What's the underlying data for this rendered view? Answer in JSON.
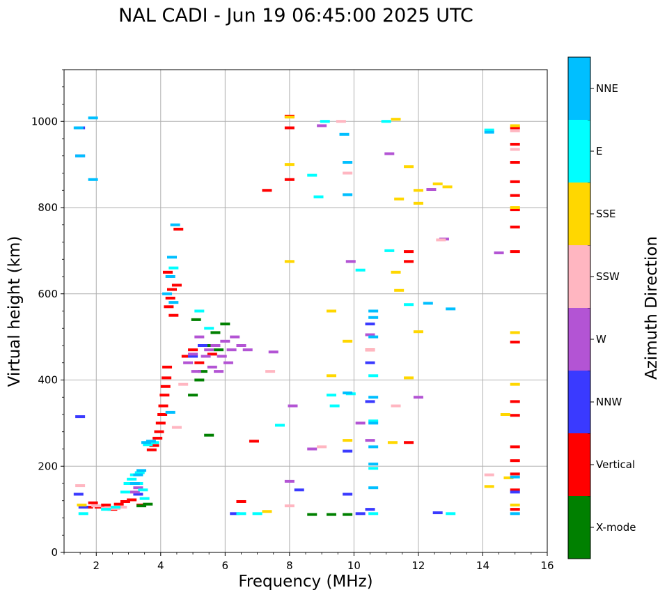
{
  "chart_data": {
    "type": "scatter",
    "title": "NAL CADI - Jun 19 06:45:00 2025 UTC",
    "xlabel": "Frequency (MHz)",
    "ylabel": "Virtual height (km)",
    "xlim": [
      1,
      16
    ],
    "ylim": [
      0,
      1120
    ],
    "xticks": [
      2,
      4,
      6,
      8,
      10,
      12,
      14,
      16
    ],
    "yticks": [
      0,
      200,
      400,
      600,
      800,
      1000
    ],
    "grid": true,
    "colorbar": {
      "label": "Azimuth Direction",
      "categories": [
        {
          "name": "X-mode",
          "color": "#008000"
        },
        {
          "name": "Vertical",
          "color": "#ff0000"
        },
        {
          "name": "NNW",
          "color": "#3a3aff"
        },
        {
          "name": "W",
          "color": "#b354d4"
        },
        {
          "name": "SSW",
          "color": "#ffb6c1"
        },
        {
          "name": "SSE",
          "color": "#ffd700"
        },
        {
          "name": "E",
          "color": "#00ffff"
        },
        {
          "name": "NNE",
          "color": "#00bfff"
        }
      ]
    },
    "series": [
      {
        "name": "Vertical",
        "points": [
          [
            1.75,
            105
          ],
          [
            1.9,
            115
          ],
          [
            2.1,
            105
          ],
          [
            2.3,
            110
          ],
          [
            2.5,
            100
          ],
          [
            2.7,
            112
          ],
          [
            2.9,
            118
          ],
          [
            3.1,
            122
          ],
          [
            3.4,
            110
          ],
          [
            3.72,
            238
          ],
          [
            3.8,
            248
          ],
          [
            3.9,
            265
          ],
          [
            3.95,
            280
          ],
          [
            4.0,
            300
          ],
          [
            4.05,
            320
          ],
          [
            4.08,
            340
          ],
          [
            4.12,
            365
          ],
          [
            4.15,
            385
          ],
          [
            4.18,
            405
          ],
          [
            4.2,
            430
          ],
          [
            4.25,
            570
          ],
          [
            4.22,
            650
          ],
          [
            4.3,
            590
          ],
          [
            4.35,
            610
          ],
          [
            4.4,
            550
          ],
          [
            4.5,
            620
          ],
          [
            4.55,
            750
          ],
          [
            4.8,
            455
          ],
          [
            5.0,
            470
          ],
          [
            5.2,
            440
          ],
          [
            5.6,
            460
          ],
          [
            6.5,
            118
          ],
          [
            6.9,
            258
          ],
          [
            7.3,
            840
          ],
          [
            8.0,
            865
          ],
          [
            8.0,
            985
          ],
          [
            8.0,
            1012
          ],
          [
            10.5,
            470
          ],
          [
            11.7,
            255
          ],
          [
            11.7,
            675
          ],
          [
            11.7,
            698
          ],
          [
            15.0,
            100
          ],
          [
            15.0,
            145
          ],
          [
            15.0,
            182
          ],
          [
            15.0,
            213
          ],
          [
            15.0,
            245
          ],
          [
            15.0,
            318
          ],
          [
            15.0,
            350
          ],
          [
            15.0,
            488
          ],
          [
            15.0,
            698
          ],
          [
            15.0,
            755
          ],
          [
            15.0,
            795
          ],
          [
            15.0,
            828
          ],
          [
            15.0,
            860
          ],
          [
            15.0,
            905
          ],
          [
            15.0,
            947
          ],
          [
            15.0,
            985
          ]
        ]
      },
      {
        "name": "X-mode",
        "points": [
          [
            3.4,
            108
          ],
          [
            3.6,
            112
          ],
          [
            5.0,
            365
          ],
          [
            5.2,
            400
          ],
          [
            5.3,
            420
          ],
          [
            5.4,
            480
          ],
          [
            5.5,
            272
          ],
          [
            5.1,
            540
          ],
          [
            5.7,
            510
          ],
          [
            5.8,
            470
          ],
          [
            6.0,
            530
          ],
          [
            8.7,
            88
          ],
          [
            9.3,
            88
          ],
          [
            9.8,
            88
          ]
        ]
      },
      {
        "name": "NNW",
        "points": [
          [
            1.45,
            135
          ],
          [
            1.5,
            315
          ],
          [
            1.5,
            920
          ],
          [
            1.5,
            985
          ],
          [
            1.6,
            105
          ],
          [
            3.3,
            135
          ],
          [
            5.0,
            455
          ],
          [
            5.3,
            480
          ],
          [
            6.3,
            90
          ],
          [
            8.3,
            145
          ],
          [
            9.8,
            135
          ],
          [
            9.8,
            235
          ],
          [
            10.2,
            90
          ],
          [
            10.5,
            100
          ],
          [
            10.5,
            350
          ],
          [
            10.5,
            440
          ],
          [
            10.5,
            530
          ],
          [
            12.6,
            92
          ],
          [
            15.0,
            140
          ]
        ]
      },
      {
        "name": "W",
        "points": [
          [
            3.2,
            140
          ],
          [
            3.3,
            150
          ],
          [
            4.85,
            440
          ],
          [
            5.0,
            460
          ],
          [
            5.1,
            420
          ],
          [
            5.2,
            500
          ],
          [
            5.4,
            455
          ],
          [
            5.5,
            470
          ],
          [
            5.6,
            430
          ],
          [
            5.7,
            480
          ],
          [
            5.8,
            420
          ],
          [
            5.9,
            455
          ],
          [
            6.0,
            490
          ],
          [
            6.1,
            440
          ],
          [
            6.2,
            470
          ],
          [
            6.3,
            500
          ],
          [
            6.5,
            480
          ],
          [
            6.7,
            470
          ],
          [
            7.5,
            465
          ],
          [
            8.0,
            165
          ],
          [
            8.1,
            340
          ],
          [
            8.7,
            240
          ],
          [
            9.0,
            990
          ],
          [
            9.9,
            675
          ],
          [
            10.2,
            300
          ],
          [
            10.5,
            260
          ],
          [
            10.5,
            505
          ],
          [
            11.1,
            925
          ],
          [
            12.0,
            360
          ],
          [
            12.4,
            842
          ],
          [
            12.8,
            727
          ],
          [
            14.5,
            695
          ]
        ]
      },
      {
        "name": "SSW",
        "points": [
          [
            1.5,
            155
          ],
          [
            2.0,
            108
          ],
          [
            2.3,
            103
          ],
          [
            2.6,
            102
          ],
          [
            2.8,
            105
          ],
          [
            4.5,
            290
          ],
          [
            4.7,
            390
          ],
          [
            7.4,
            420
          ],
          [
            8.0,
            108
          ],
          [
            9.0,
            245
          ],
          [
            9.6,
            1000
          ],
          [
            9.8,
            880
          ],
          [
            10.5,
            470
          ],
          [
            11.3,
            340
          ],
          [
            12.7,
            725
          ],
          [
            14.2,
            180
          ],
          [
            15.0,
            935
          ],
          [
            15.0,
            978
          ]
        ]
      },
      {
        "name": "SSE",
        "points": [
          [
            1.55,
            110
          ],
          [
            7.3,
            95
          ],
          [
            8.0,
            675
          ],
          [
            8.0,
            900
          ],
          [
            8.0,
            1010
          ],
          [
            9.3,
            410
          ],
          [
            9.3,
            560
          ],
          [
            9.8,
            260
          ],
          [
            9.8,
            490
          ],
          [
            11.2,
            255
          ],
          [
            11.3,
            1005
          ],
          [
            11.3,
            650
          ],
          [
            11.4,
            608
          ],
          [
            11.4,
            820
          ],
          [
            11.7,
            405
          ],
          [
            11.7,
            895
          ],
          [
            12.0,
            810
          ],
          [
            12.0,
            840
          ],
          [
            12.0,
            512
          ],
          [
            12.6,
            855
          ],
          [
            12.9,
            848
          ],
          [
            14.2,
            153
          ],
          [
            14.7,
            320
          ],
          [
            14.8,
            173
          ],
          [
            15.0,
            110
          ],
          [
            15.0,
            390
          ],
          [
            15.0,
            510
          ],
          [
            15.0,
            800
          ],
          [
            15.0,
            990
          ]
        ]
      },
      {
        "name": "E",
        "points": [
          [
            1.6,
            90
          ],
          [
            2.3,
            100
          ],
          [
            2.6,
            105
          ],
          [
            2.9,
            140
          ],
          [
            3.0,
            160
          ],
          [
            3.1,
            170
          ],
          [
            3.2,
            180
          ],
          [
            3.3,
            160
          ],
          [
            3.35,
            185
          ],
          [
            3.45,
            145
          ],
          [
            3.5,
            125
          ],
          [
            3.6,
            250
          ],
          [
            3.8,
            255
          ],
          [
            4.4,
            660
          ],
          [
            5.2,
            560
          ],
          [
            5.5,
            520
          ],
          [
            6.5,
            90
          ],
          [
            7.0,
            90
          ],
          [
            7.7,
            295
          ],
          [
            8.7,
            875
          ],
          [
            8.9,
            825
          ],
          [
            9.1,
            1000
          ],
          [
            9.3,
            365
          ],
          [
            9.4,
            340
          ],
          [
            9.9,
            368
          ],
          [
            10.2,
            655
          ],
          [
            10.6,
            90
          ],
          [
            10.6,
            195
          ],
          [
            10.6,
            305
          ],
          [
            10.6,
            410
          ],
          [
            11.0,
            1000
          ],
          [
            11.1,
            700
          ],
          [
            11.7,
            575
          ],
          [
            13.0,
            90
          ],
          [
            14.2,
            980
          ]
        ]
      },
      {
        "name": "NNE",
        "points": [
          [
            1.45,
            985
          ],
          [
            1.5,
            920
          ],
          [
            1.9,
            1008
          ],
          [
            1.9,
            865
          ],
          [
            3.2,
            160
          ],
          [
            3.3,
            180
          ],
          [
            3.4,
            190
          ],
          [
            3.55,
            255
          ],
          [
            3.7,
            258
          ],
          [
            4.2,
            600
          ],
          [
            4.3,
            640
          ],
          [
            4.35,
            685
          ],
          [
            4.45,
            760
          ],
          [
            4.4,
            580
          ],
          [
            4.3,
            325
          ],
          [
            9.7,
            970
          ],
          [
            9.8,
            370
          ],
          [
            9.8,
            905
          ],
          [
            9.8,
            830
          ],
          [
            10.6,
            150
          ],
          [
            10.6,
            205
          ],
          [
            10.6,
            245
          ],
          [
            10.6,
            300
          ],
          [
            10.6,
            360
          ],
          [
            10.6,
            500
          ],
          [
            10.6,
            545
          ],
          [
            10.6,
            560
          ],
          [
            12.3,
            578
          ],
          [
            13.0,
            565
          ],
          [
            14.2,
            975
          ],
          [
            15.0,
            90
          ],
          [
            15.0,
            175
          ]
        ]
      }
    ]
  }
}
